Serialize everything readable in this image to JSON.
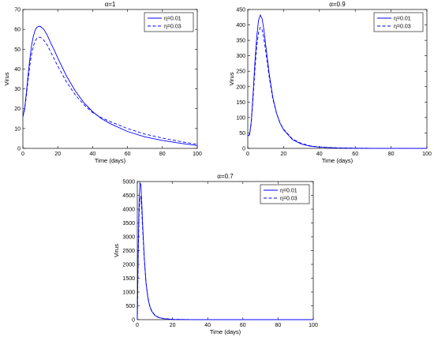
{
  "chart_data": [
    {
      "type": "line",
      "title": "α=1",
      "xlabel": "Time (days)",
      "ylabel": "Virus",
      "xlim": [
        0,
        100
      ],
      "ylim": [
        0,
        70
      ],
      "xticks": [
        0,
        20,
        40,
        60,
        80,
        100
      ],
      "yticks": [
        0,
        10,
        20,
        30,
        40,
        50,
        60,
        70
      ],
      "grid": false,
      "legend": "top-right",
      "series": [
        {
          "name": "η=0.01",
          "style": "solid",
          "color": "#0000ff",
          "x": [
            0,
            1,
            2,
            3,
            4,
            5,
            6,
            7,
            8,
            9,
            10,
            12,
            14,
            16,
            18,
            20,
            25,
            30,
            35,
            40,
            45,
            50,
            60,
            70,
            80,
            90,
            100
          ],
          "y": [
            16,
            20,
            28,
            37,
            45,
            52,
            56.5,
            59.5,
            61,
            61.5,
            61.5,
            60,
            57,
            53,
            49.5,
            45.5,
            36.5,
            29,
            23,
            18.5,
            15,
            12.5,
            8.5,
            5.8,
            4,
            2.6,
            1.4
          ]
        },
        {
          "name": "η=0.03",
          "style": "dashed",
          "color": "#0000ff",
          "x": [
            0,
            1,
            2,
            3,
            4,
            5,
            6,
            7,
            8,
            9,
            10,
            12,
            14,
            16,
            18,
            20,
            25,
            30,
            35,
            40,
            45,
            50,
            60,
            70,
            80,
            90,
            100
          ],
          "y": [
            16,
            19.5,
            26.5,
            34.5,
            42,
            47.5,
            51.5,
            54,
            55.5,
            56,
            56,
            54.5,
            52,
            48.5,
            45,
            41.5,
            33.5,
            27,
            22,
            18,
            15.5,
            13.5,
            10,
            7.2,
            5.2,
            3.5,
            2
          ]
        }
      ]
    },
    {
      "type": "line",
      "title": "α=0.9",
      "xlabel": "Time (days)",
      "ylabel": "Virus",
      "xlim": [
        0,
        100
      ],
      "ylim": [
        0,
        450
      ],
      "xticks": [
        0,
        20,
        40,
        60,
        80,
        100
      ],
      "yticks": [
        0,
        50,
        100,
        150,
        200,
        250,
        300,
        350,
        400,
        450
      ],
      "grid": false,
      "legend": "top-right",
      "series": [
        {
          "name": "η=0.01",
          "style": "solid",
          "color": "#0000ff",
          "x": [
            0,
            1,
            2,
            3,
            4,
            5,
            6,
            7,
            8,
            9,
            10,
            12,
            14,
            16,
            18,
            20,
            25,
            30,
            35,
            40,
            50,
            60,
            70,
            80,
            100
          ],
          "y": [
            40,
            45,
            90,
            180,
            280,
            360,
            415,
            432,
            420,
            385,
            335,
            240,
            165,
            115,
            82,
            60,
            28,
            14,
            7,
            4,
            1.5,
            0.5,
            0.2,
            0.1,
            0
          ]
        },
        {
          "name": "η=0.03",
          "style": "dashed",
          "color": "#0000ff",
          "x": [
            0,
            1,
            2,
            3,
            4,
            5,
            6,
            7,
            8,
            9,
            10,
            12,
            14,
            16,
            18,
            20,
            25,
            30,
            35,
            40,
            50,
            60,
            70,
            80,
            100
          ],
          "y": [
            40,
            44,
            85,
            165,
            255,
            330,
            375,
            392,
            385,
            355,
            315,
            230,
            160,
            115,
            83,
            62,
            30,
            16,
            8,
            4.5,
            1.8,
            0.6,
            0.2,
            0.1,
            0
          ]
        }
      ]
    },
    {
      "type": "line",
      "title": "α=0.7",
      "xlabel": "Time (days)",
      "ylabel": "Virus",
      "xlim": [
        0,
        100
      ],
      "ylim": [
        0,
        5000
      ],
      "xticks": [
        0,
        20,
        40,
        60,
        80,
        100
      ],
      "yticks": [
        0,
        500,
        1000,
        1500,
        2000,
        2500,
        3000,
        3500,
        4000,
        4500,
        5000
      ],
      "grid": false,
      "legend": "top-right",
      "series": [
        {
          "name": "η=0.01",
          "style": "solid",
          "color": "#0000ff",
          "x": [
            0,
            0.5,
            1,
            1.5,
            2,
            2.5,
            3,
            4,
            5,
            6,
            7,
            8,
            10,
            12,
            15,
            20,
            30,
            50,
            100
          ],
          "y": [
            0,
            2500,
            4200,
            4950,
            4900,
            4300,
            3500,
            2200,
            1300,
            800,
            500,
            320,
            150,
            80,
            35,
            10,
            2,
            0,
            0
          ]
        },
        {
          "name": "η=0.03",
          "style": "dashed",
          "color": "#0000ff",
          "x": [
            0,
            0.5,
            1,
            1.5,
            2,
            2.5,
            3,
            4,
            5,
            6,
            7,
            8,
            10,
            12,
            15,
            20,
            30,
            50,
            100
          ],
          "y": [
            0,
            2200,
            3800,
            4450,
            4450,
            4000,
            3300,
            2150,
            1300,
            820,
            520,
            340,
            160,
            85,
            38,
            11,
            2,
            0,
            0
          ]
        }
      ]
    }
  ]
}
